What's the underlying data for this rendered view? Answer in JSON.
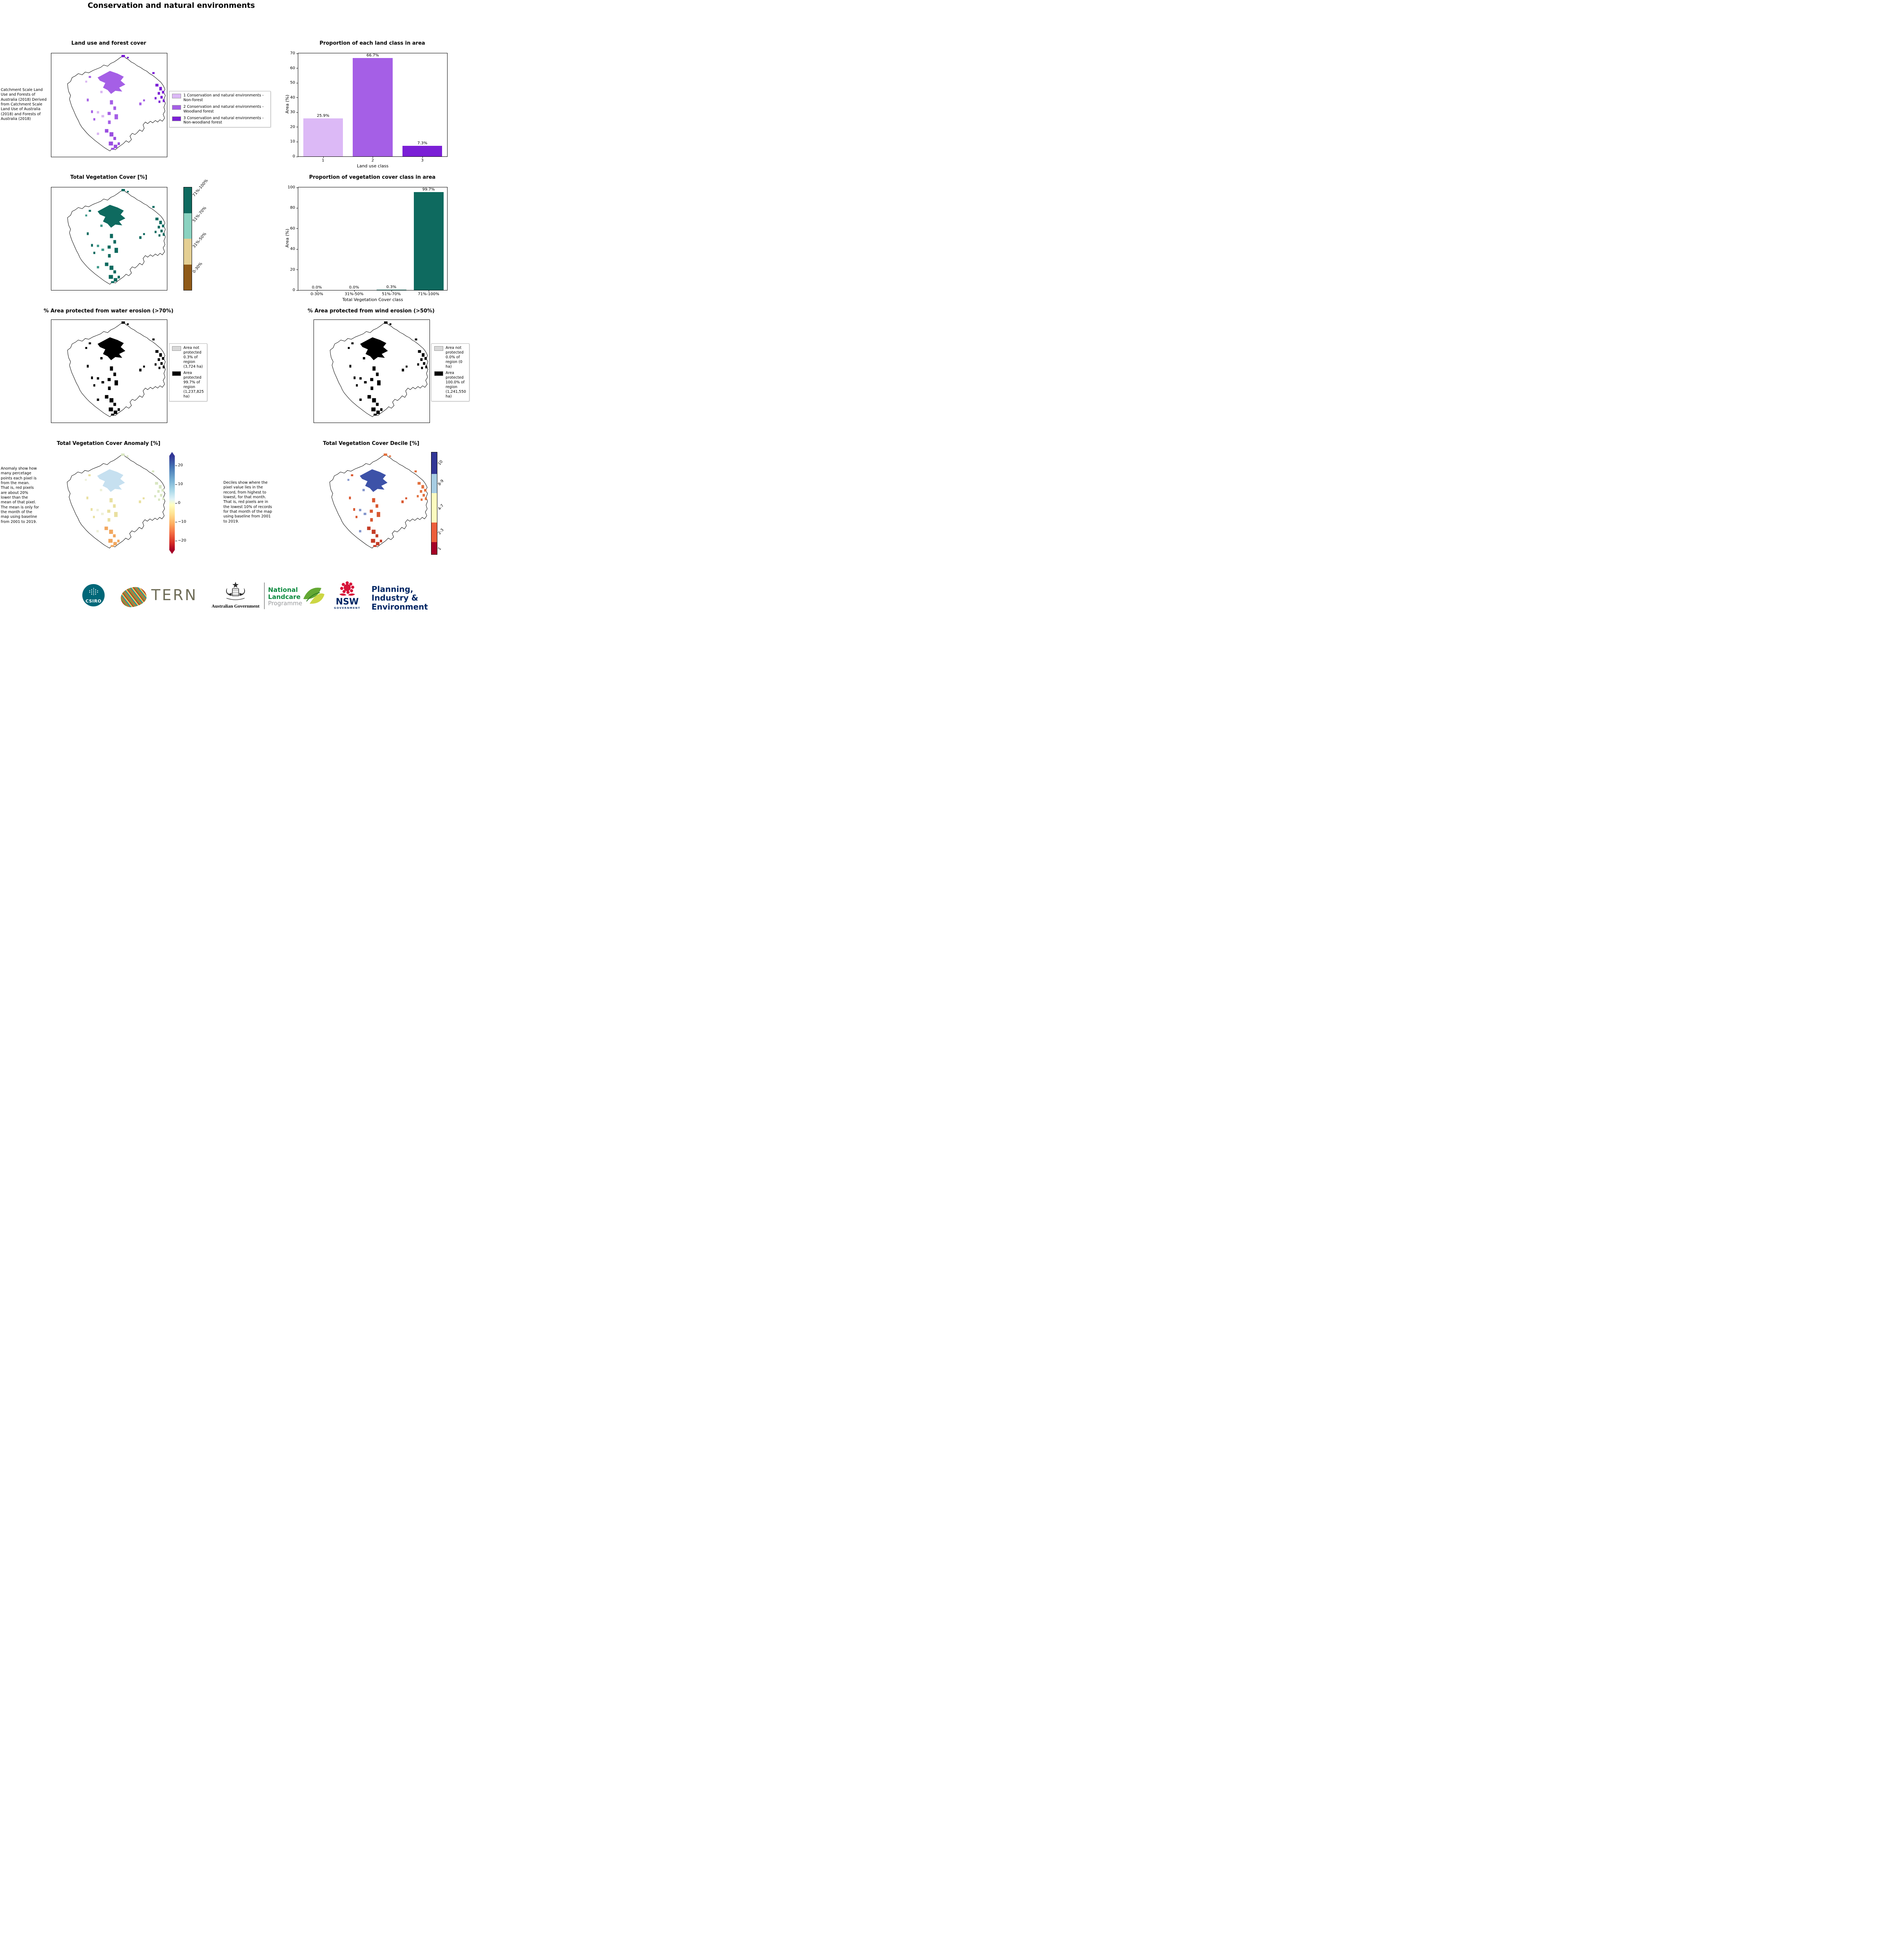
{
  "page": {
    "title": "Conservation and natural environments"
  },
  "row1": {
    "map": {
      "title": "Land use and forest cover",
      "caption": "Catchment Scale Land Use and Forests of Australia (2018) Derived from Catchment Scale Land Use of Australia (2018) and Forests of Australia (2018)",
      "legend": [
        {
          "label": "1 Conservation and natural environments - Non-forest",
          "color": "#dcb9f6"
        },
        {
          "label": "2 Conservation and natural environments - Woodland forest",
          "color": "#a55fe6"
        },
        {
          "label": "3 Conservation and natural environments - Non-woodland forest",
          "color": "#7b1fd6"
        }
      ]
    }
  },
  "row2": {
    "map": {
      "title": "Total Vegetation Cover [%]",
      "colorbar": {
        "labels": [
          "71%-100%",
          "51%-70%",
          "31%-50%",
          "0-30%"
        ],
        "colors": [
          "#0e6a5f",
          "#8ad2c0",
          "#e4cf93",
          "#8f5a18"
        ]
      }
    }
  },
  "row3": {
    "water": {
      "title": "% Area protected from water erosion (>70%)",
      "legend": [
        {
          "label": "Area not protected 0.3% of region (3,724 ha)",
          "color": "#d9d9d9"
        },
        {
          "label": "Area protected 99.7% of region (1,237,825 ha)",
          "color": "#000000"
        }
      ]
    },
    "wind": {
      "title": "% Area protected from wind erosion (>50%)",
      "legend": [
        {
          "label": "Area not protected 0.0% of region (0 ha)",
          "color": "#d9d9d9"
        },
        {
          "label": "Area protected 100.0% of region (1,241,550 ha)",
          "color": "#000000"
        }
      ]
    }
  },
  "row4": {
    "anomaly": {
      "title": "Total Vegetation Cover Anomaly [%]",
      "caption": "Anomaly show how many percetage points each pixel is from the mean. That is, red pixels are about 20% lower than the mean of that pixel. The mean is only for the month of the map using baseline from 2001 to 2019.",
      "colorbar_ticks": [
        "20",
        "10",
        "0",
        "−10",
        "−20"
      ]
    },
    "decile": {
      "title": "Total Vegetation Cover Decile [%]",
      "caption": "Deciles show where the pixel value lies in the record, from highest to lowest, for that month. That is, red pixels are in the lowest 10% of records for that month of the map using baseline from 2001 to 2019.",
      "colorbar_labels": [
        "10",
        "8-9",
        "4-7",
        "2-3",
        "1"
      ],
      "colorbar_colors": [
        "#313695",
        "#a7cde2",
        "#fdfcbf",
        "#ec5e3b",
        "#a50026"
      ]
    }
  },
  "chart_data": [
    {
      "type": "bar",
      "title": "Proportion of each land class in area",
      "categories": [
        "1",
        "2",
        "3"
      ],
      "values": [
        25.9,
        66.7,
        7.3
      ],
      "labels": [
        "25.9%",
        "66.7%",
        "7.3%"
      ],
      "colors": [
        "#dcb9f6",
        "#a55fe6",
        "#7b1fd6"
      ],
      "xlabel": "Land use class",
      "ylabel": "Area (%)",
      "ylim": [
        0,
        70
      ],
      "yticks": [
        "70",
        "60",
        "50",
        "40",
        "30",
        "20",
        "10",
        "0"
      ],
      "grid": false,
      "legend_position": "none"
    },
    {
      "type": "bar",
      "title": "Proportion of vegetation cover class in area",
      "categories": [
        "0-30%",
        "31%-50%",
        "51%-70%",
        "71%-100%"
      ],
      "values": [
        0.0,
        0.0,
        0.3,
        99.7
      ],
      "labels": [
        "0.0%",
        "0.0%",
        "0.3%",
        "99.7%"
      ],
      "color": "#0e6a5f",
      "xlabel": "Total Vegetation Cover class",
      "ylabel": "Area (%)",
      "ylim": [
        0,
        100
      ],
      "yticks": [
        "100",
        "80",
        "60",
        "40",
        "20",
        "0"
      ],
      "grid": false,
      "legend_position": "none"
    }
  ],
  "logos": {
    "csiro": "CSIRO",
    "csiro_bg": "#006778",
    "tern": "TERN",
    "tern_fg": "#6f6d58",
    "aus_gov": "Australian Government",
    "landcare_line1": "National",
    "landcare_line2": "Landcare",
    "landcare_line3": "Programme",
    "landcare_green": "#0b8a3e",
    "landcare_gray": "#97999b",
    "nsw": "NSW",
    "nsw_sub": "GOVERNMENT",
    "nsw_navy": "#002664",
    "waratah_red": "#d7153a",
    "dpie_line1": "Planning,",
    "dpie_line2": "Industry &",
    "dpie_line3": "Environment"
  }
}
